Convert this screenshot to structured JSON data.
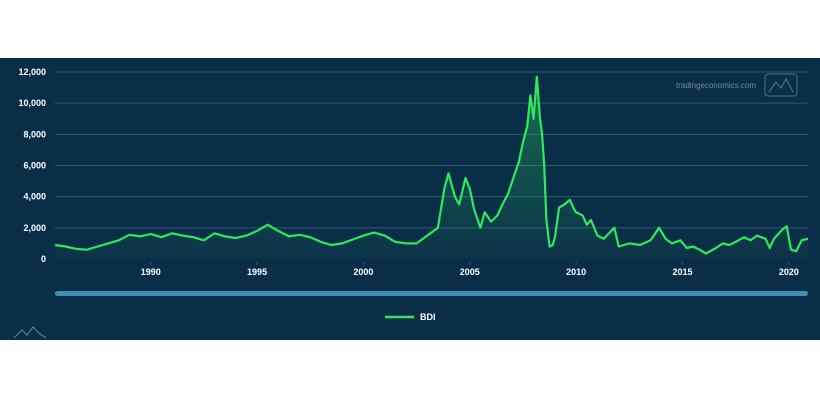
{
  "watermark": {
    "text": "tradingeconomics.com"
  },
  "colors": {
    "background": "#0b2e48",
    "line": "#2ee85d",
    "grid": "#2d5b78",
    "navigator": "#3d8fb3",
    "text": "#ffffff"
  },
  "chart_data": {
    "type": "line",
    "title": "",
    "xlabel": "",
    "ylabel": "",
    "xlim": [
      1985.5,
      2020.9
    ],
    "ylim": [
      0,
      12000
    ],
    "x_ticks": [
      "1990",
      "1995",
      "2000",
      "2005",
      "2010",
      "2015",
      "2020"
    ],
    "y_ticks": [
      "0",
      "2,000",
      "4,000",
      "6,000",
      "8,000",
      "10,000",
      "12,000"
    ],
    "grid": true,
    "legend": {
      "position": "bottom-center",
      "entries": [
        "BDI"
      ]
    },
    "series": [
      {
        "name": "BDI",
        "x": [
          1985.5,
          1986.0,
          1986.5,
          1987.0,
          1987.5,
          1988.0,
          1988.5,
          1989.0,
          1989.5,
          1990.0,
          1990.5,
          1991.0,
          1991.5,
          1992.0,
          1992.5,
          1993.0,
          1993.5,
          1994.0,
          1994.5,
          1995.0,
          1995.5,
          1996.0,
          1996.5,
          1997.0,
          1997.5,
          1998.0,
          1998.5,
          1999.0,
          1999.5,
          2000.0,
          2000.5,
          2001.0,
          2001.5,
          2002.0,
          2002.5,
          2003.0,
          2003.5,
          2003.8,
          2004.0,
          2004.3,
          2004.5,
          2004.8,
          2005.0,
          2005.2,
          2005.5,
          2005.7,
          2006.0,
          2006.3,
          2006.5,
          2006.8,
          2007.0,
          2007.3,
          2007.5,
          2007.7,
          2007.85,
          2008.0,
          2008.15,
          2008.3,
          2008.4,
          2008.5,
          2008.6,
          2008.75,
          2008.9,
          2009.0,
          2009.2,
          2009.45,
          2009.7,
          2009.9,
          2010.0,
          2010.3,
          2010.5,
          2010.7,
          2011.0,
          2011.3,
          2011.5,
          2011.8,
          2012.0,
          2012.5,
          2013.0,
          2013.5,
          2013.9,
          2014.2,
          2014.5,
          2014.9,
          2015.2,
          2015.5,
          2015.8,
          2016.1,
          2016.5,
          2016.9,
          2017.2,
          2017.5,
          2017.9,
          2018.2,
          2018.5,
          2018.9,
          2019.1,
          2019.3,
          2019.7,
          2019.9,
          2020.1,
          2020.35,
          2020.6,
          2020.9
        ],
        "values": [
          900,
          800,
          650,
          600,
          800,
          1000,
          1200,
          1550,
          1450,
          1600,
          1400,
          1650,
          1500,
          1400,
          1200,
          1650,
          1450,
          1350,
          1500,
          1800,
          2200,
          1800,
          1450,
          1550,
          1400,
          1100,
          900,
          1000,
          1250,
          1500,
          1700,
          1500,
          1100,
          1000,
          1000,
          1500,
          2000,
          4500,
          5500,
          4000,
          3500,
          5200,
          4500,
          3200,
          2000,
          3000,
          2400,
          2800,
          3400,
          4200,
          5000,
          6200,
          7500,
          8500,
          10500,
          9000,
          11700,
          9000,
          8000,
          6000,
          2500,
          800,
          900,
          1400,
          3300,
          3500,
          3800,
          3200,
          3000,
          2800,
          2200,
          2500,
          1500,
          1300,
          1600,
          2000,
          800,
          1000,
          900,
          1200,
          2000,
          1300,
          1000,
          1200,
          700,
          800,
          600,
          350,
          650,
          1000,
          900,
          1100,
          1400,
          1200,
          1500,
          1300,
          700,
          1300,
          1900,
          2100,
          600,
          500,
          1200,
          1300
        ]
      }
    ]
  }
}
